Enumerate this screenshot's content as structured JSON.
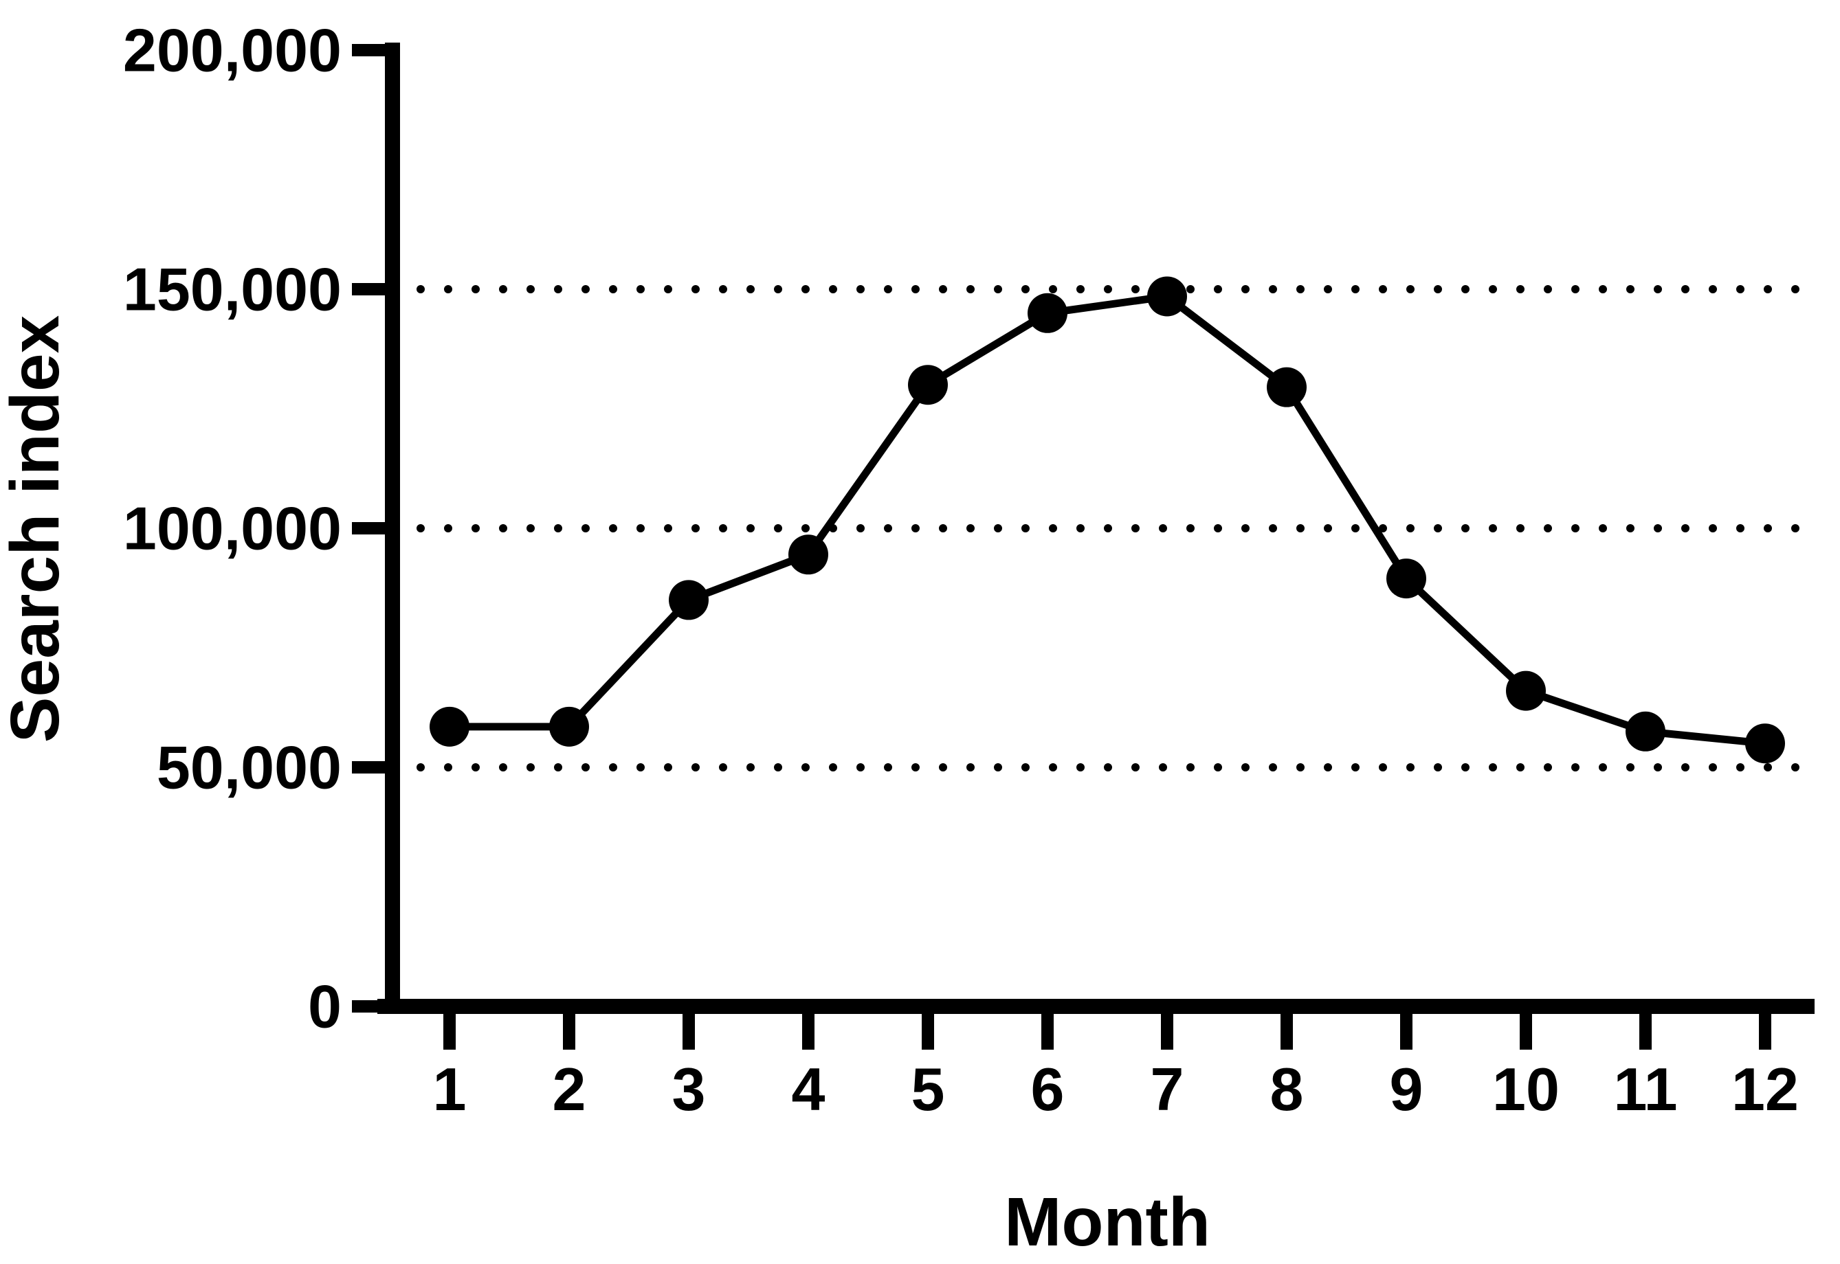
{
  "figure": {
    "background": "#ffffff",
    "ink_color": "#000000"
  },
  "chart_data": {
    "type": "line",
    "title": "",
    "xlabel": "Month",
    "ylabel": "Search index",
    "categories": [
      "1",
      "2",
      "3",
      "4",
      "5",
      "6",
      "7",
      "8",
      "9",
      "10",
      "11",
      "12"
    ],
    "series": [
      {
        "name": "Search index",
        "color": "#000000",
        "marker": "filled-circle",
        "values": [
          58500,
          58500,
          85000,
          94500,
          130000,
          145000,
          148500,
          129500,
          89500,
          66000,
          57500,
          55000
        ]
      }
    ],
    "ylim": [
      0,
      200000
    ],
    "xlim_categories": [
      "1",
      "12"
    ],
    "yticks": [
      {
        "value": 0,
        "label": "0"
      },
      {
        "value": 50000,
        "label": "50,000"
      },
      {
        "value": 100000,
        "label": "100,000"
      },
      {
        "value": 150000,
        "label": "150,000"
      },
      {
        "value": 200000,
        "label": "200,000"
      }
    ],
    "gridlines": {
      "style": "dotted",
      "orientation": "horizontal",
      "values": [
        50000,
        100000,
        150000
      ]
    },
    "legend_position": "none"
  }
}
